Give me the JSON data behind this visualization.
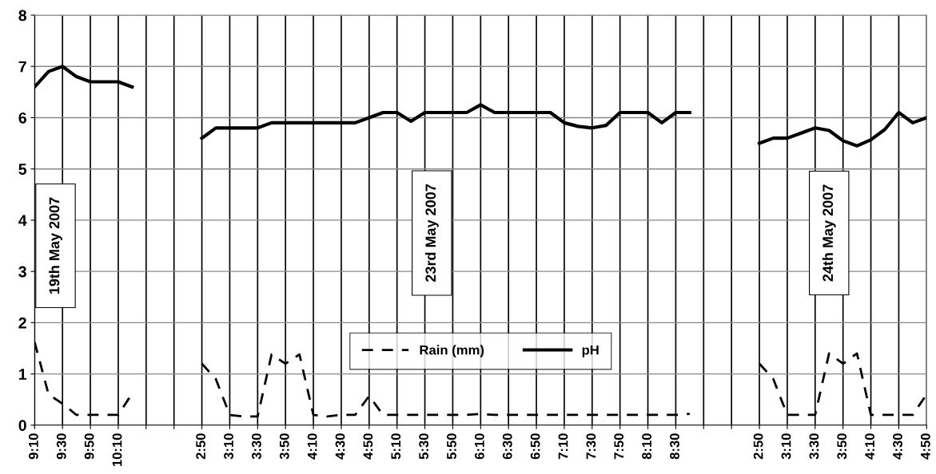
{
  "chart_data": {
    "type": "line",
    "categories": [
      "9:10",
      null,
      "9:30",
      null,
      "9:50",
      null,
      "10:10",
      null,
      null,
      null,
      null,
      null,
      "2:50",
      null,
      "3:10",
      null,
      "3:30",
      null,
      "3:50",
      null,
      "4:10",
      null,
      "4:30",
      null,
      "4:50",
      null,
      "5:10",
      null,
      "5:30",
      null,
      "5:50",
      null,
      "6:10",
      null,
      "6:30",
      null,
      "6:50",
      null,
      "7:10",
      null,
      "7:30",
      null,
      "7:50",
      null,
      "8:10",
      null,
      "8:30",
      null,
      null,
      null,
      null,
      null,
      "2:50",
      null,
      "3:10",
      null,
      "3:30",
      null,
      "3:50",
      null,
      "4:10",
      null,
      "4:30",
      null,
      "4:50"
    ],
    "series": [
      {
        "name": "Rain (mm)",
        "color": "#000000",
        "line_style": "dashed",
        "values": [
          1.62,
          0.6,
          0.42,
          0.2,
          0.2,
          0.2,
          0.2,
          0.62,
          null,
          null,
          null,
          null,
          1.2,
          0.9,
          0.2,
          0.17,
          0.17,
          1.38,
          1.2,
          1.38,
          0.2,
          0.17,
          0.2,
          0.2,
          0.57,
          0.2,
          0.2,
          0.2,
          0.2,
          0.2,
          0.2,
          0.2,
          0.22,
          0.2,
          0.2,
          0.2,
          0.2,
          0.2,
          0.2,
          0.2,
          0.2,
          0.2,
          0.2,
          0.2,
          0.2,
          0.2,
          0.2,
          0.22,
          null,
          null,
          null,
          null,
          1.2,
          0.9,
          0.2,
          0.2,
          0.2,
          1.4,
          1.2,
          1.4,
          0.2,
          0.2,
          0.2,
          0.2,
          0.6
        ]
      },
      {
        "name": "pH",
        "color": "#000000",
        "line_style": "solid",
        "values": [
          6.6,
          6.9,
          7.0,
          6.8,
          6.7,
          6.7,
          6.7,
          6.6,
          null,
          null,
          null,
          null,
          5.6,
          5.8,
          5.8,
          5.8,
          5.8,
          5.9,
          5.9,
          5.9,
          5.9,
          5.9,
          5.9,
          5.9,
          6.0,
          6.1,
          6.1,
          5.93,
          6.1,
          6.1,
          6.1,
          6.1,
          6.25,
          6.1,
          6.1,
          6.1,
          6.1,
          6.1,
          5.9,
          5.83,
          5.8,
          5.85,
          6.1,
          6.1,
          6.1,
          5.9,
          6.1,
          6.1,
          null,
          null,
          null,
          null,
          5.5,
          5.6,
          5.6,
          5.7,
          5.8,
          5.75,
          5.55,
          5.45,
          5.57,
          5.77,
          6.1,
          5.9,
          6.0
        ]
      }
    ],
    "ylim": [
      0,
      8
    ],
    "yticks": [
      0,
      1,
      2,
      3,
      4,
      5,
      6,
      7,
      8
    ],
    "grid": true,
    "legend": "bottom",
    "annotations": [
      "19th May 2007",
      "23rd May 2007",
      "24th May 2007"
    ]
  }
}
